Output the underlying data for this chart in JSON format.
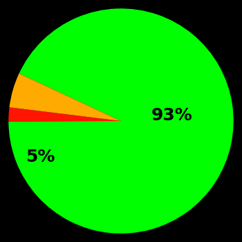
{
  "slices": [
    93,
    2,
    5
  ],
  "colors": [
    "#00ff00",
    "#ff1500",
    "#ffaa00"
  ],
  "labels": [
    "93%",
    "",
    "5%"
  ],
  "background_color": "#000000",
  "text_color": "#000000",
  "font_size": 18,
  "startangle": 187,
  "counterclock": false
}
